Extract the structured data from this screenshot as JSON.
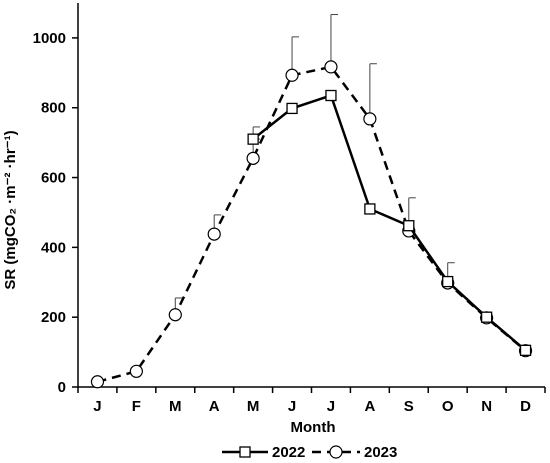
{
  "chart_data": {
    "type": "line",
    "categories": [
      "J",
      "F",
      "M",
      "A",
      "M",
      "J",
      "J",
      "A",
      "S",
      "O",
      "N",
      "D"
    ],
    "xlabel": "Month",
    "ylabel": "SR (mgCO₂ ·m⁻² ·hr⁻¹)",
    "ylim": [
      0,
      1100
    ],
    "yticks": [
      0,
      200,
      400,
      600,
      800,
      1000
    ],
    "grid": false,
    "legend_position": "bottom",
    "series": [
      {
        "name": "2022",
        "line_style": "solid",
        "marker": "square",
        "values": [
          null,
          null,
          null,
          null,
          710,
          798,
          835,
          510,
          462,
          302,
          200,
          105
        ],
        "error_upper": [
          null,
          null,
          null,
          null,
          35,
          null,
          null,
          null,
          null,
          null,
          null,
          null
        ]
      },
      {
        "name": "2023",
        "line_style": "dashed",
        "marker": "circle",
        "values": [
          15,
          45,
          207,
          438,
          655,
          893,
          917,
          768,
          447,
          298,
          198,
          104
        ],
        "error_upper": [
          null,
          null,
          48,
          55,
          55,
          110,
          150,
          158,
          95,
          58,
          null,
          null
        ]
      }
    ]
  }
}
